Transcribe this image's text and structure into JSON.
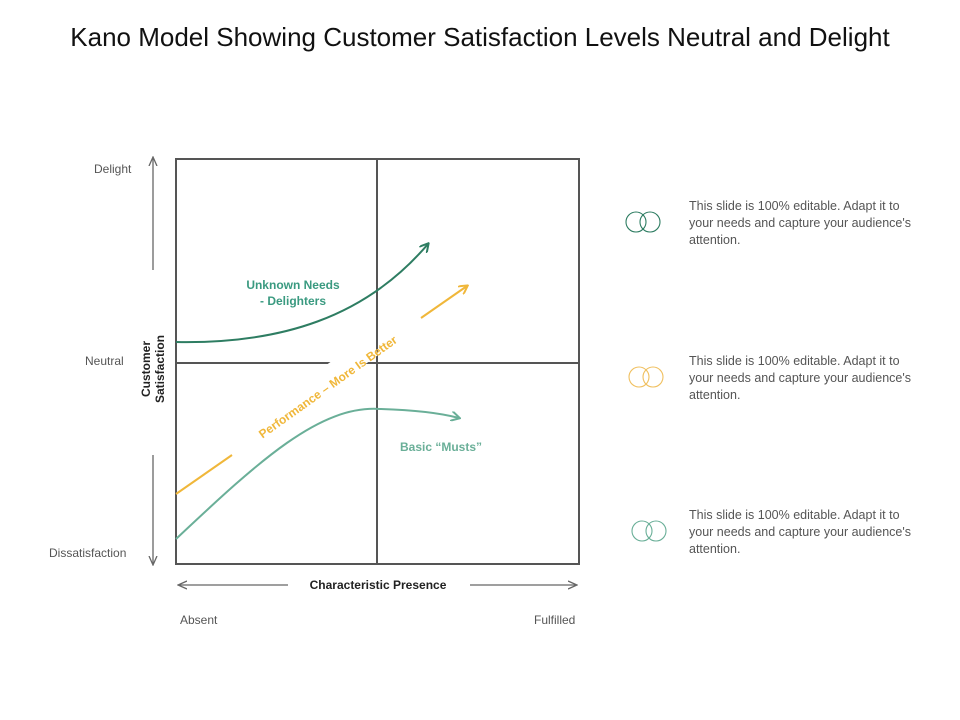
{
  "title": "Kano Model Showing Customer Satisfaction Levels Neutral and Delight",
  "y_axis": {
    "label": "Customer Satisfaction",
    "ticks": [
      "Delight",
      "Neutral",
      "Dissatisfaction"
    ]
  },
  "x_axis": {
    "label": "Characteristic Presence",
    "ticks": [
      "Absent",
      "Fulfilled"
    ]
  },
  "curves": {
    "delighters": {
      "label_line1": "Unknown Needs",
      "label_line2": "- Delighters",
      "color": "#2e7d62"
    },
    "performance": {
      "label": "Performance – More Is Better",
      "color": "#f0b73a"
    },
    "basic": {
      "label": "Basic “Musts”",
      "color": "#6aaf98"
    }
  },
  "legend": [
    {
      "icon": "two-circles-icon",
      "color": "#2e7d62",
      "text": "This slide is 100% editable. Adapt it to your needs and capture your audience's attention."
    },
    {
      "icon": "two-circles-icon",
      "color": "#f0c060",
      "text": "This slide is 100% editable. Adapt it to your needs and capture your audience's attention."
    },
    {
      "icon": "two-circles-icon",
      "color": "#6aaf98",
      "text": "This slide is 100% editable. Adapt it to your needs and capture your audience's attention."
    }
  ]
}
